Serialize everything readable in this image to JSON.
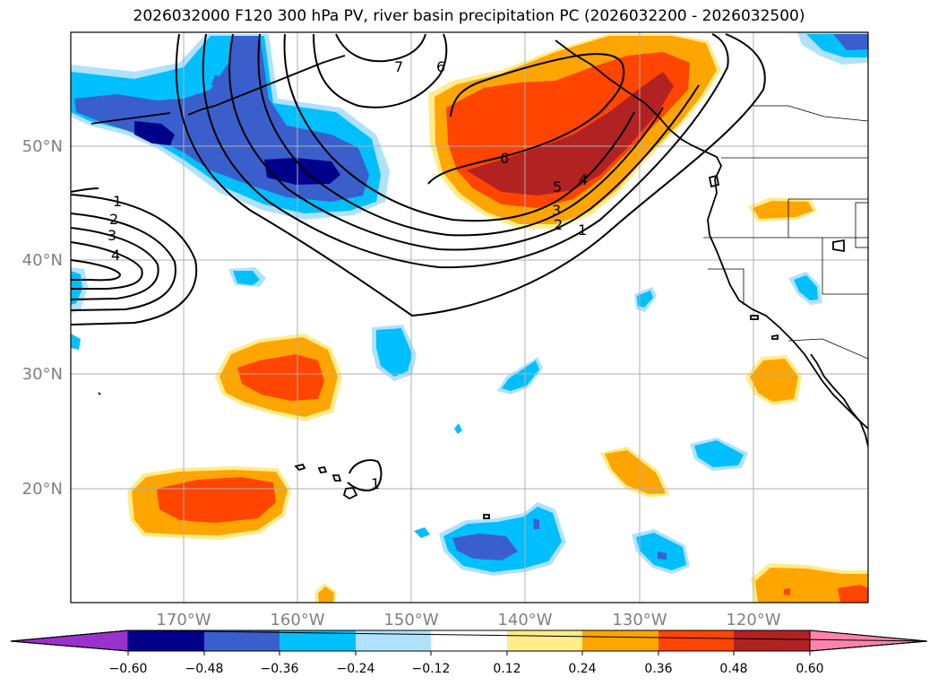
{
  "title": "2026032000 F120 300 hPa PV, river basin precipitation PC (2026032200 - 2026032500)",
  "map": {
    "lon_labels": [
      "170°W",
      "160°W",
      "150°W",
      "140°W",
      "130°W",
      "120°W"
    ],
    "lat_labels": [
      "50°N",
      "40°N",
      "30°N",
      "20°N"
    ],
    "pv_contour_labels": [
      "1",
      "2",
      "3",
      "4",
      "5",
      "6",
      "7"
    ]
  },
  "colorbar": {
    "ticks": [
      "−0.60",
      "−0.48",
      "−0.36",
      "−0.24",
      "−0.12",
      "0.12",
      "0.24",
      "0.36",
      "0.48",
      "0.60"
    ],
    "colors": [
      "#9932cc",
      "#00008b",
      "#3a5fcd",
      "#00bfff",
      "#b0e2ff",
      "#ffffff",
      "#ffec8b",
      "#ffa500",
      "#ff4500",
      "#b22222",
      "#ff82ab"
    ]
  },
  "palette": {
    "land_lines": "#000000",
    "grid": "#b0b0b0"
  }
}
